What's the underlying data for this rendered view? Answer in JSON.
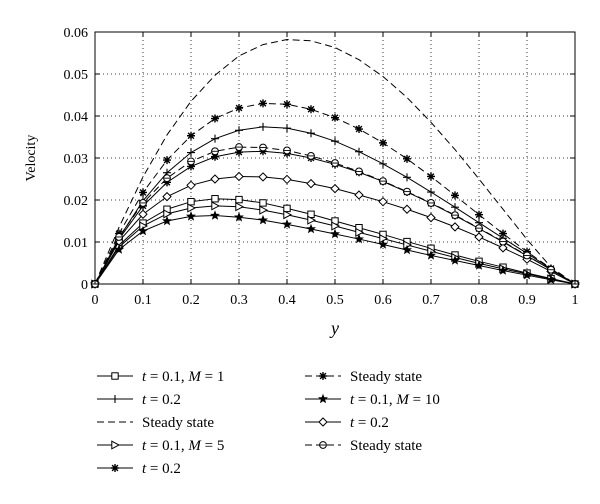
{
  "chart_data": {
    "type": "line",
    "xlabel": "y",
    "ylabel": "Velocity",
    "xlim": [
      0,
      1
    ],
    "ylim": [
      0,
      0.06
    ],
    "xticks": [
      "0",
      "0.1",
      "0.2",
      "0.3",
      "0.4",
      "0.5",
      "0.6",
      "0.7",
      "0.8",
      "0.9",
      "1"
    ],
    "yticks": [
      "0",
      "0.01",
      "0.02",
      "0.03",
      "0.04",
      "0.05",
      "0.06"
    ],
    "grid": true,
    "legend_position": "bottom, two columns",
    "x": [
      0,
      0.05,
      0.1,
      0.15,
      0.2,
      0.25,
      0.3,
      0.35,
      0.4,
      0.45,
      0.5,
      0.55,
      0.6,
      0.65,
      0.7,
      0.75,
      0.8,
      0.85,
      0.9,
      0.95,
      1
    ],
    "series": [
      {
        "name": "t = 0.1, M = 1",
        "line": "solid",
        "marker": "square",
        "values": [
          0,
          0.0092,
          0.0145,
          0.0178,
          0.0196,
          0.0203,
          0.0201,
          0.0193,
          0.018,
          0.0166,
          0.015,
          0.0134,
          0.0118,
          0.0101,
          0.0085,
          0.0069,
          0.0054,
          0.004,
          0.0026,
          0.0013,
          0
        ]
      },
      {
        "name": "t = 0.2",
        "line": "solid",
        "marker": "plus",
        "values": [
          0,
          0.011,
          0.0198,
          0.0265,
          0.0313,
          0.0346,
          0.0366,
          0.0374,
          0.0371,
          0.0359,
          0.034,
          0.0315,
          0.0286,
          0.0254,
          0.0219,
          0.0183,
          0.0146,
          0.0109,
          0.0073,
          0.0036,
          0
        ]
      },
      {
        "name": "Steady state",
        "line": "dashed",
        "marker": "none",
        "values": [
          0,
          0.0135,
          0.0255,
          0.0355,
          0.0435,
          0.0497,
          0.0543,
          0.057,
          0.0582,
          0.0579,
          0.0563,
          0.0534,
          0.0494,
          0.0444,
          0.0385,
          0.032,
          0.025,
          0.0178,
          0.0106,
          0.004,
          0
        ]
      },
      {
        "name": "t = 0.1, M = 5",
        "line": "solid",
        "marker": "triangle-right",
        "values": [
          0,
          0.0088,
          0.0138,
          0.0167,
          0.0181,
          0.0186,
          0.0184,
          0.0176,
          0.0165,
          0.0152,
          0.0138,
          0.0123,
          0.0108,
          0.0093,
          0.0078,
          0.0063,
          0.0049,
          0.0036,
          0.0024,
          0.0012,
          0
        ]
      },
      {
        "name": "t = 0.2",
        "line": "solid",
        "marker": "asterisk",
        "values": [
          0,
          0.0107,
          0.0186,
          0.0242,
          0.028,
          0.0303,
          0.0314,
          0.0316,
          0.0311,
          0.03,
          0.0285,
          0.0266,
          0.0244,
          0.0219,
          0.0192,
          0.0163,
          0.0132,
          0.01,
          0.0067,
          0.0034,
          0
        ]
      },
      {
        "name": "Steady state",
        "line": "dashed",
        "marker": "asterisk",
        "values": [
          0,
          0.012,
          0.0218,
          0.0295,
          0.0353,
          0.0394,
          0.0419,
          0.043,
          0.0428,
          0.0416,
          0.0396,
          0.0369,
          0.0336,
          0.0298,
          0.0256,
          0.0211,
          0.0165,
          0.012,
          0.0077,
          0.0037,
          0
        ]
      },
      {
        "name": "t = 0.1, M = 10",
        "line": "solid",
        "marker": "star",
        "values": [
          0,
          0.0082,
          0.0126,
          0.015,
          0.0161,
          0.0163,
          0.0159,
          0.0152,
          0.0142,
          0.0131,
          0.0119,
          0.0107,
          0.0094,
          0.0081,
          0.0068,
          0.0056,
          0.0044,
          0.0032,
          0.0021,
          0.001,
          0
        ]
      },
      {
        "name": "t = 0.2",
        "line": "solid",
        "marker": "diamond",
        "values": [
          0,
          0.0102,
          0.0166,
          0.0208,
          0.0235,
          0.025,
          0.0256,
          0.0255,
          0.0249,
          0.0239,
          0.0227,
          0.0212,
          0.0196,
          0.0178,
          0.0158,
          0.0136,
          0.0112,
          0.0086,
          0.0059,
          0.003,
          0
        ]
      },
      {
        "name": "Steady state",
        "line": "dashed",
        "marker": "circle-dot",
        "values": [
          0,
          0.0112,
          0.0193,
          0.0252,
          0.0292,
          0.0316,
          0.0326,
          0.0325,
          0.0318,
          0.0305,
          0.0288,
          0.0268,
          0.0245,
          0.022,
          0.0193,
          0.0164,
          0.0133,
          0.0101,
          0.0068,
          0.0034,
          0
        ]
      }
    ],
    "legend_layout": [
      {
        "series": 0,
        "col": 0,
        "row": 0
      },
      {
        "series": 1,
        "col": 0,
        "row": 1
      },
      {
        "series": 2,
        "col": 0,
        "row": 2
      },
      {
        "series": 3,
        "col": 0,
        "row": 3
      },
      {
        "series": 4,
        "col": 0,
        "row": 4
      },
      {
        "series": 5,
        "col": 1,
        "row": 0
      },
      {
        "series": 6,
        "col": 1,
        "row": 1
      },
      {
        "series": 7,
        "col": 1,
        "row": 2
      },
      {
        "series": 8,
        "col": 1,
        "row": 3
      }
    ]
  }
}
